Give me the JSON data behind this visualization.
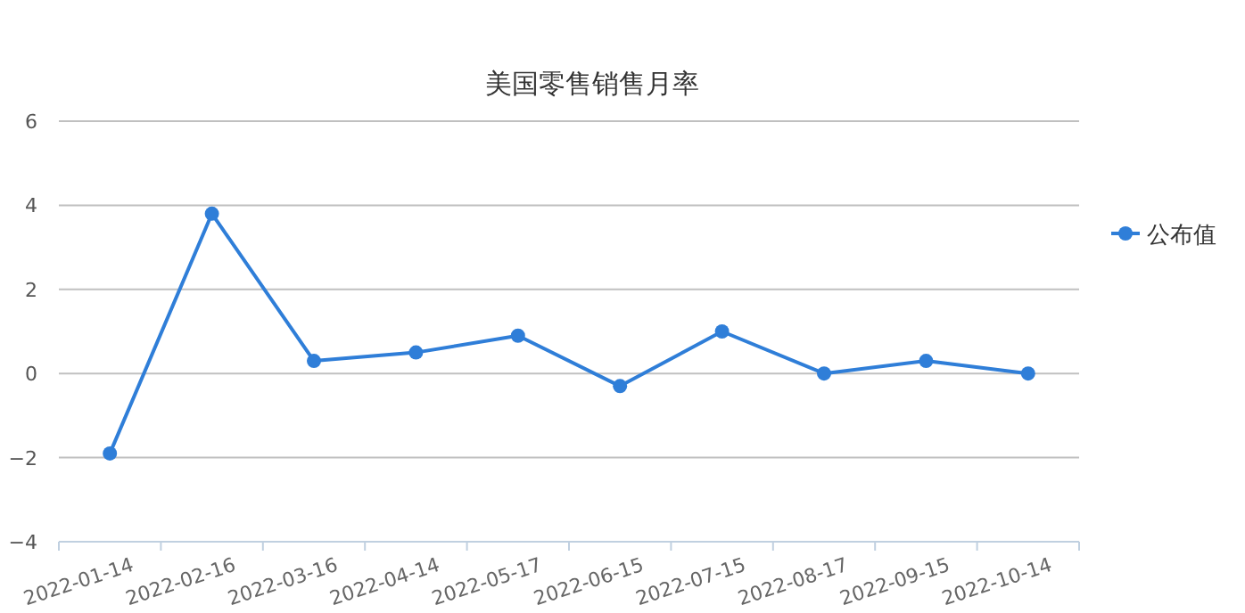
{
  "chart_data": {
    "type": "line",
    "title": "美国零售销售月率",
    "categories": [
      "2022-01-14",
      "2022-02-16",
      "2022-03-16",
      "2022-04-14",
      "2022-05-17",
      "2022-06-15",
      "2022-07-15",
      "2022-08-17",
      "2022-09-15",
      "2022-10-14"
    ],
    "series": [
      {
        "name": "公布值",
        "color": "#2f7ed8",
        "values": [
          -1.9,
          3.8,
          0.3,
          0.5,
          0.9,
          -0.3,
          1.0,
          0.0,
          0.3,
          0.0
        ]
      }
    ],
    "ylim": [
      -4,
      6
    ],
    "yticks": [
      -4,
      -2,
      0,
      2,
      4,
      6
    ],
    "grid": "y",
    "legend": "right",
    "marker": "circle",
    "line_style": "solid"
  }
}
